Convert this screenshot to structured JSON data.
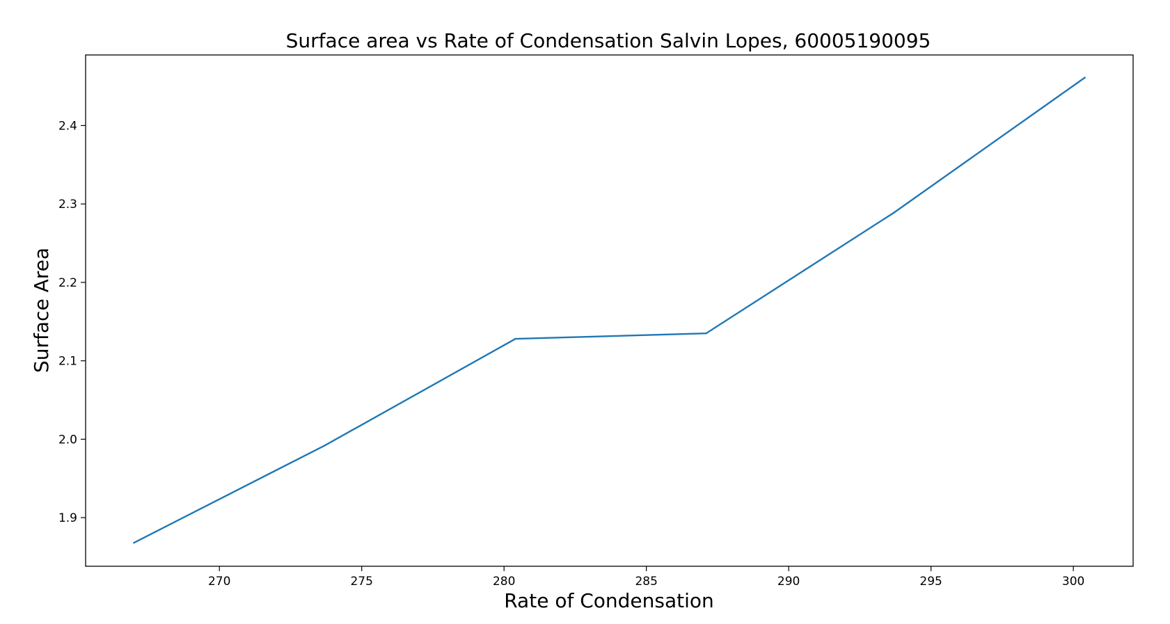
{
  "chart_data": {
    "type": "line",
    "title": "Surface area vs Rate of Condensation Salvin Lopes, 60005190095",
    "xlabel": "Rate of Condensation",
    "ylabel": "Surface Area",
    "xlim": [
      265.3,
      302.1
    ],
    "ylim": [
      1.838,
      2.49
    ],
    "x_ticks": [
      270,
      275,
      280,
      285,
      290,
      295,
      300
    ],
    "x_tick_labels": [
      "270",
      "275",
      "280",
      "285",
      "290",
      "295",
      "300"
    ],
    "y_ticks": [
      1.9,
      2.0,
      2.1,
      2.2,
      2.3,
      2.4
    ],
    "y_tick_labels": [
      "1.9",
      "2.0",
      "2.1",
      "2.2",
      "2.3",
      "2.4"
    ],
    "grid": false,
    "series": [
      {
        "color": "#1f77b4",
        "x": [
          267.0,
          273.7,
          280.4,
          287.1,
          293.7,
          300.4
        ],
        "y": [
          1.868,
          1.992,
          2.128,
          2.135,
          2.289,
          2.461
        ]
      }
    ]
  }
}
